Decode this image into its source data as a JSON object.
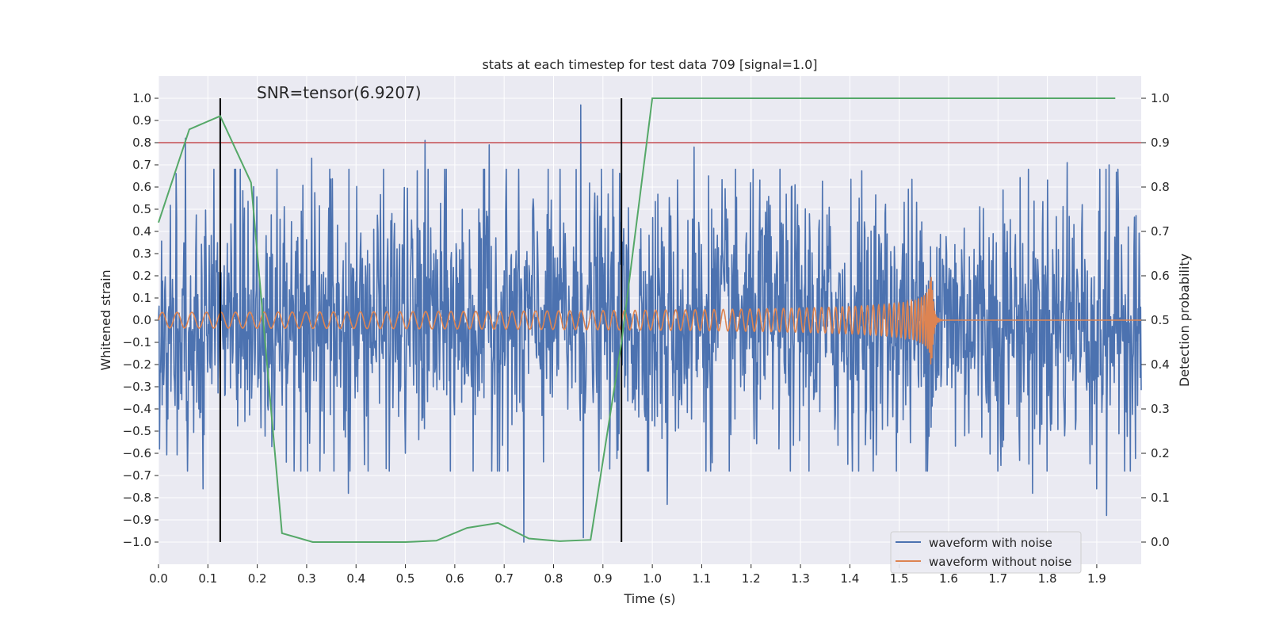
{
  "chart_data": {
    "type": "line",
    "title": "stats at each timestep for test data 709 [signal=1.0]",
    "xlabel": "Time (s)",
    "ylabel": "Whitened strain",
    "y2label": "Detection probability",
    "annotation": "SNR=tensor(6.9207)",
    "xlim": [
      0.0,
      1.99
    ],
    "ylim": [
      -1.1,
      1.1
    ],
    "y2lim": [
      -0.05,
      1.05
    ],
    "x_ticks": [
      0.0,
      0.1,
      0.2,
      0.3,
      0.4,
      0.5,
      0.6,
      0.7,
      0.8,
      0.9,
      1.0,
      1.1,
      1.2,
      1.3,
      1.4,
      1.5,
      1.6,
      1.7,
      1.8,
      1.9
    ],
    "x_tick_labels": [
      "0.0",
      "0.1",
      "0.2",
      "0.3",
      "0.4",
      "0.5",
      "0.6",
      "0.7",
      "0.8",
      "0.9",
      "1.0",
      "1.1",
      "1.2",
      "1.3",
      "1.4",
      "1.5",
      "1.6",
      "1.7",
      "1.8",
      "1.9"
    ],
    "y_ticks": [
      -1.0,
      -0.9,
      -0.8,
      -0.7,
      -0.6,
      -0.5,
      -0.4,
      -0.3,
      -0.2,
      -0.1,
      0.0,
      0.1,
      0.2,
      0.3,
      0.4,
      0.5,
      0.6,
      0.7,
      0.8,
      0.9,
      1.0
    ],
    "y_tick_labels": [
      "−1.0",
      "−0.9",
      "−0.8",
      "−0.7",
      "−0.6",
      "−0.5",
      "−0.4",
      "−0.3",
      "−0.2",
      "−0.1",
      "0.0",
      "0.1",
      "0.2",
      "0.3",
      "0.4",
      "0.5",
      "0.6",
      "0.7",
      "0.8",
      "0.9",
      "1.0"
    ],
    "y2_ticks": [
      0.0,
      0.1,
      0.2,
      0.3,
      0.4,
      0.5,
      0.6,
      0.7,
      0.8,
      0.9,
      1.0
    ],
    "y2_tick_labels": [
      "0.0",
      "0.1",
      "0.2",
      "0.3",
      "0.4",
      "0.5",
      "0.6",
      "0.7",
      "0.8",
      "0.9",
      "1.0"
    ],
    "series": [
      {
        "name": "waveform with noise",
        "color": "#4c72b0",
        "axis": "left",
        "kind": "noise",
        "x_range": [
          0.0,
          1.99
        ],
        "num_points": 1900,
        "amplitude_approx": 0.4,
        "peaks": [
          {
            "x": 0.055,
            "y": 0.82
          },
          {
            "x": 0.09,
            "y": -0.76
          },
          {
            "x": 0.31,
            "y": 0.73
          },
          {
            "x": 0.54,
            "y": 0.81
          },
          {
            "x": 0.385,
            "y": -0.78
          },
          {
            "x": 0.67,
            "y": 0.79
          },
          {
            "x": 0.74,
            "y": -1.0
          },
          {
            "x": 0.855,
            "y": 0.97
          },
          {
            "x": 0.86,
            "y": -0.98
          },
          {
            "x": 1.085,
            "y": 0.78
          },
          {
            "x": 1.03,
            "y": -0.83
          },
          {
            "x": 1.77,
            "y": -0.78
          },
          {
            "x": 1.92,
            "y": -0.88
          },
          {
            "x": 1.84,
            "y": 0.71
          },
          {
            "x": 1.925,
            "y": 0.7
          },
          {
            "x": 1.9,
            "y": -0.76
          }
        ]
      },
      {
        "name": "waveform without noise",
        "color": "#dd8452",
        "axis": "left",
        "kind": "chirp",
        "x_range": [
          0.0,
          1.99
        ],
        "start_frequency_hz": 33,
        "merger_time": 1.565,
        "amplitude_start": 0.035,
        "amplitude_peak": 0.25
      },
      {
        "name": "detection probability",
        "color": "#55a868",
        "axis": "right",
        "x": [
          0.0,
          0.0625,
          0.125,
          0.1875,
          0.25,
          0.3125,
          0.375,
          0.4375,
          0.5,
          0.5625,
          0.625,
          0.6875,
          0.75,
          0.8125,
          0.875,
          0.9375,
          1.0,
          1.0625,
          1.125,
          1.1875,
          1.25,
          1.3125,
          1.375,
          1.4375,
          1.5,
          1.5625,
          1.625,
          1.6875,
          1.75,
          1.8125,
          1.875,
          1.9375
        ],
        "y": [
          0.72,
          0.93,
          0.96,
          0.81,
          0.02,
          0.0,
          0.0,
          0.0,
          0.0,
          0.003,
          0.032,
          0.043,
          0.008,
          0.002,
          0.005,
          0.45,
          1.0,
          1.0,
          1.0,
          1.0,
          1.0,
          1.0,
          1.0,
          1.0,
          1.0,
          1.0,
          1.0,
          1.0,
          1.0,
          1.0,
          1.0,
          1.0
        ]
      }
    ],
    "threshold": {
      "axis": "right",
      "y": 0.9,
      "color": "#c44e52"
    },
    "vertical_markers": [
      {
        "x": 0.125,
        "y_range": [
          -1.0,
          1.0
        ],
        "color": "#000000"
      },
      {
        "x": 0.9375,
        "y_range": [
          -1.0,
          1.0
        ],
        "color": "#000000"
      }
    ],
    "legend": {
      "placement": "lower-right",
      "entries": [
        "waveform with noise",
        "waveform without noise"
      ]
    },
    "grid": true,
    "style": {
      "background": "#eaeaf2",
      "grid_color": "#ffffff",
      "text_color": "#262626"
    }
  }
}
